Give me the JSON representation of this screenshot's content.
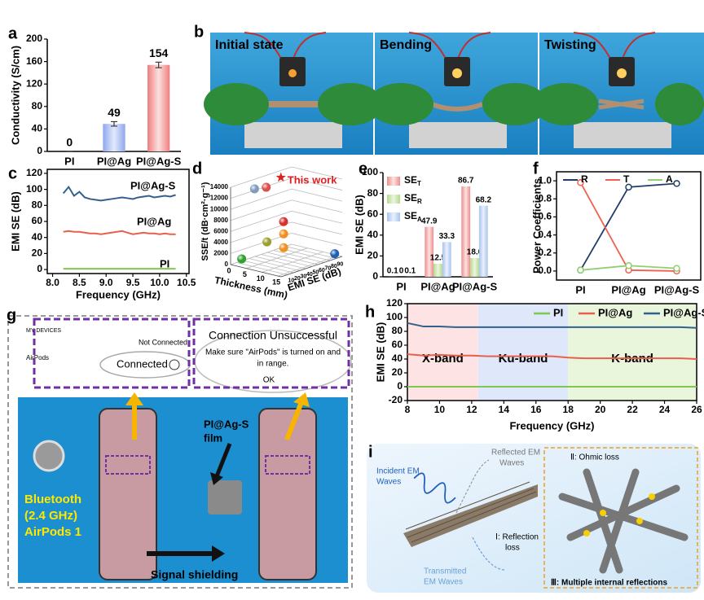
{
  "panel_labels": [
    "a",
    "b",
    "c",
    "d",
    "e",
    "f",
    "g",
    "h",
    "i"
  ],
  "chart_data": [
    {
      "type": "bar",
      "categories": [
        "PI",
        "PI@Ag",
        "PI@Ag-S"
      ],
      "values": [
        0,
        49,
        154
      ],
      "errors": [
        0,
        4,
        5
      ],
      "colors": [
        "#8fa8ee",
        "#8fa8ee",
        "#ef7f7f"
      ],
      "ylabel": "Conductivity (S/cm)",
      "ylim": [
        0,
        200
      ],
      "yticks": [
        0,
        40,
        80,
        120,
        160,
        200
      ]
    },
    {
      "type": "line",
      "xlabel": "Frequency (GHz)",
      "ylabel": "EMI SE (dB)",
      "x": [
        8.2,
        8.3,
        8.4,
        8.5,
        8.6,
        8.7,
        8.8,
        8.9,
        9.0,
        9.1,
        9.2,
        9.3,
        9.4,
        9.5,
        9.6,
        9.7,
        9.8,
        9.9,
        10.0,
        10.1,
        10.2,
        10.3
      ],
      "series": [
        {
          "name": "PI@Ag-S",
          "color": "#34608c",
          "values": [
            95,
            103,
            92,
            97,
            90,
            88,
            87,
            86,
            87,
            88,
            89,
            90,
            89,
            88,
            90,
            91,
            92,
            90,
            91,
            92,
            91,
            93
          ]
        },
        {
          "name": "PI@Ag",
          "color": "#e8604c",
          "values": [
            47,
            48,
            47,
            47,
            46,
            45,
            45,
            44,
            45,
            46,
            47,
            48,
            46,
            44,
            45,
            46,
            45,
            45,
            44,
            45,
            44,
            44
          ]
        },
        {
          "name": "PI",
          "color": "#7ec850",
          "values": [
            1,
            1,
            1,
            1,
            1,
            1,
            1,
            1,
            1,
            1,
            1,
            1,
            1,
            1,
            1,
            1,
            1,
            1,
            1,
            1,
            1,
            1
          ]
        }
      ],
      "xlim": [
        7.9,
        10.55
      ],
      "xticks": [
        {
          "value": 8,
          "label": "8.0"
        },
        8.5,
        {
          "value": 9,
          "label": "9.0"
        },
        9.5,
        {
          "value": 10,
          "label": "10.0"
        },
        10.5
      ],
      "ylim": [
        -5,
        125
      ],
      "yticks": [
        0,
        20,
        40,
        60,
        80,
        100,
        120
      ]
    },
    {
      "type": "scatter3d",
      "xlabel": "Thickness (mm)",
      "ylabel": "SSE/t (dB·cm²·g⁻¹)",
      "zlabel": "EMI SE (dB)",
      "x": [
        1,
        2,
        4,
        3,
        5,
        5,
        1,
        14
      ],
      "y": [
        12600,
        12500,
        5900,
        2900,
        4000,
        1500,
        700,
        300
      ],
      "z": [
        34,
        48,
        66,
        44,
        61,
        61,
        13,
        98
      ],
      "colors": [
        "#7f9cc0",
        "#d95050",
        "#d93030",
        "#9aa030",
        "#f09020",
        "#f09020",
        "#30a030",
        "#2060b0"
      ],
      "highlight": {
        "label": "This work",
        "x": 2,
        "y": 13400,
        "z": 72,
        "color": "#e02020"
      },
      "xlim": [
        0,
        16
      ],
      "xticks": [
        0,
        5,
        10,
        15
      ],
      "ylim": [
        0,
        14000
      ],
      "yticks": [
        0,
        2000,
        4000,
        6000,
        8000,
        10000,
        12000,
        14000
      ],
      "zlim": [
        0,
        100
      ],
      "zticks": [
        10,
        20,
        30,
        40,
        50,
        60,
        70,
        80,
        90
      ]
    },
    {
      "type": "bar",
      "categories": [
        "PI",
        "PI@Ag",
        "PI@Ag-S"
      ],
      "ylabel": "EMI SE (dB)",
      "series": [
        {
          "name": "SE",
          "name_sub": "T",
          "color": "#f08c8c",
          "values": [
            0.1,
            47.9,
            86.7
          ]
        },
        {
          "name": "SE",
          "name_sub": "R",
          "color": "#b5d98a",
          "values": [
            0,
            12.5,
            18.0
          ],
          "value_labels": [
            "0",
            "12.5",
            "18.0"
          ]
        },
        {
          "name": "SE",
          "name_sub": "A",
          "color": "#a8c4f0",
          "values": [
            0.1,
            33.3,
            68.2
          ]
        }
      ],
      "ylim": [
        0,
        100
      ],
      "yticks": [
        0,
        20,
        40,
        60,
        80,
        100
      ]
    },
    {
      "type": "line",
      "categories": [
        "PI",
        "PI@Ag",
        "PI@Ag-S"
      ],
      "ylabel": "Power Coefficients",
      "series": [
        {
          "name": "R",
          "color": "#1f3d6b",
          "values": [
            0.01,
            0.93,
            0.97
          ]
        },
        {
          "name": "T",
          "color": "#f06050",
          "values": [
            0.98,
            0.01,
            0.0
          ]
        },
        {
          "name": "A",
          "color": "#90d070",
          "values": [
            0.01,
            0.06,
            0.03
          ]
        }
      ],
      "ylim": [
        -0.1,
        1.1
      ],
      "yticks": [
        {
          "value": 0,
          "label": "0.0"
        },
        0.2,
        0.4,
        0.6,
        0.8,
        {
          "value": 1,
          "label": "1.0"
        }
      ]
    },
    {
      "type": "line",
      "xlabel": "Frequency (GHz)",
      "ylabel": "EMI SE (dB)",
      "x": [
        8,
        9,
        10,
        11,
        12,
        13,
        14,
        15,
        16,
        17,
        18,
        19,
        20,
        21,
        22,
        23,
        24,
        25,
        26
      ],
      "series": [
        {
          "name": "PI",
          "color": "#7ec850",
          "values": [
            0,
            0,
            0,
            0,
            0,
            0,
            0,
            0,
            0,
            0,
            0,
            0,
            0,
            0,
            0,
            0,
            0,
            0,
            0
          ]
        },
        {
          "name": "PI@Ag",
          "color": "#e8604c",
          "values": [
            47,
            45,
            46,
            45,
            45,
            44,
            44,
            44,
            44,
            44,
            42,
            41,
            41,
            41,
            41,
            41,
            41,
            41,
            40
          ]
        },
        {
          "name": "PI@Ag-S",
          "color": "#34608c",
          "values": [
            92,
            87,
            87,
            86,
            86,
            86,
            86,
            86,
            86,
            86,
            86,
            86,
            86,
            86,
            86,
            86,
            86,
            86,
            85
          ]
        }
      ],
      "bands": [
        {
          "label": "X-band",
          "range": [
            8,
            12.4
          ],
          "color": "#fde3e3"
        },
        {
          "label": "Ku-band",
          "range": [
            12.4,
            18
          ],
          "color": "#dfe8fb"
        },
        {
          "label": "K-band",
          "range": [
            18,
            26
          ],
          "color": "#eaf6dc"
        }
      ],
      "xlim": [
        8,
        26
      ],
      "xticks": [
        8,
        10,
        12,
        14,
        16,
        18,
        20,
        22,
        24,
        26
      ],
      "ylim": [
        -20,
        120
      ],
      "yticks": [
        -20,
        0,
        20,
        40,
        60,
        80,
        100,
        120
      ]
    }
  ],
  "panel_b": {
    "labels": [
      "Initial state",
      "Bending",
      "Twisting"
    ]
  },
  "panel_g": {
    "my_devices": "MY DEVICES",
    "airpods": "AirPods",
    "not_connected": "Not Connected",
    "connected": "Connected",
    "dialog_title": "Connection Unsuccessful",
    "dialog_message": [
      "Make sure \"AirPods\" is turned on and",
      "in range."
    ],
    "dialog_button": "OK",
    "film_label": [
      "PI@Ag-S",
      "film"
    ],
    "device_label": [
      "Bluetooth",
      "(2.4 GHz)",
      "AirPods 1"
    ],
    "arrow_label": "Signal shielding"
  },
  "panel_i": {
    "incident": [
      "Incident EM",
      "Waves"
    ],
    "reflected": [
      "Reflected EM",
      "Waves"
    ],
    "transmitted": [
      "Transmitted",
      "EM Waves"
    ],
    "reflection_loss": [
      "Ⅰ: Reflection",
      "loss"
    ],
    "ohmic_loss": "Ⅱ: Ohmic loss",
    "multiple_reflections": "Ⅲ: Multiple internal reflections"
  }
}
